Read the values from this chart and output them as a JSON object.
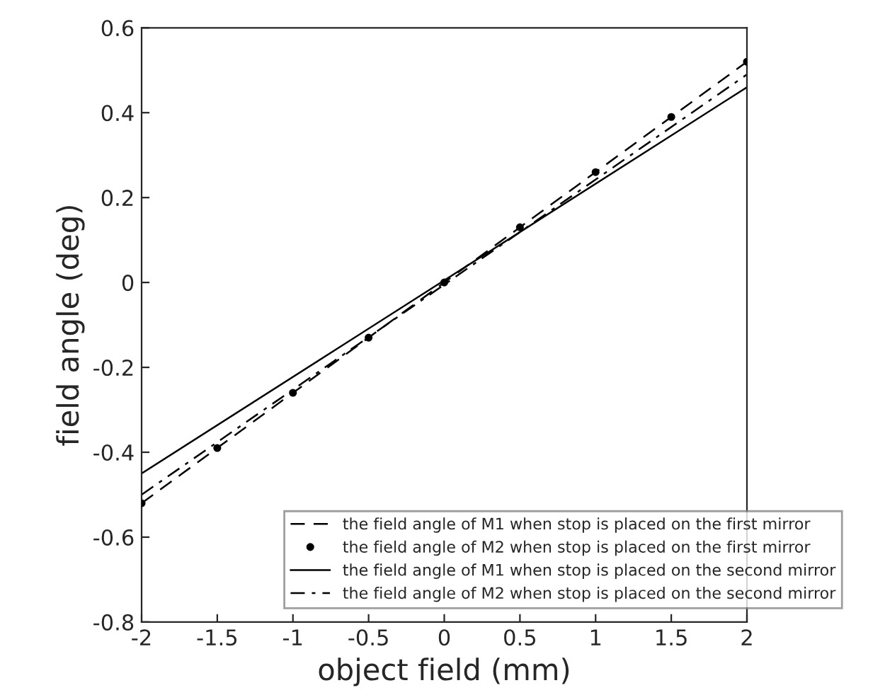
{
  "chart_data": {
    "type": "line",
    "xlabel": "object field (mm)",
    "ylabel": "field angle (deg)",
    "xlim": [
      -2,
      2
    ],
    "xticks": [
      -2,
      -1.5,
      -1,
      -0.5,
      0,
      0.5,
      1,
      1.5,
      2
    ],
    "ylim": [
      -0.8,
      0.6
    ],
    "yticks": [
      -0.8,
      -0.6,
      -0.4,
      -0.2,
      0,
      0.2,
      0.4,
      0.6
    ],
    "grid": false,
    "legend": "bottom right",
    "series": [
      {
        "name": "the field angle of M1 when stop is placed on the first mirror",
        "color": "#000000",
        "line_style": "dashed",
        "x": [
          -2,
          2
        ],
        "values": [
          -0.52,
          0.52
        ]
      },
      {
        "name": "the field angle of M2 when stop is placed on the first mirror",
        "color": "#000000",
        "type": "scatter",
        "marker": "circle",
        "x": [
          -2,
          -1.5,
          -1,
          -0.5,
          0,
          0.5,
          1,
          1.5,
          2
        ],
        "values": [
          -0.52,
          -0.39,
          -0.26,
          -0.13,
          0,
          0.13,
          0.26,
          0.39,
          0.52
        ]
      },
      {
        "name": "the field angle of M1 when stop is placed on the second mirror",
        "color": "#000000",
        "line_style": "solid",
        "x": [
          -2,
          2
        ],
        "values": [
          -0.45,
          0.46
        ]
      },
      {
        "name": "the field angle of M2 when stop is placed on the second mirror",
        "color": "#000000",
        "line_style": "dashdot",
        "x": [
          -2,
          2
        ],
        "values": [
          -0.5,
          0.49
        ]
      }
    ]
  }
}
